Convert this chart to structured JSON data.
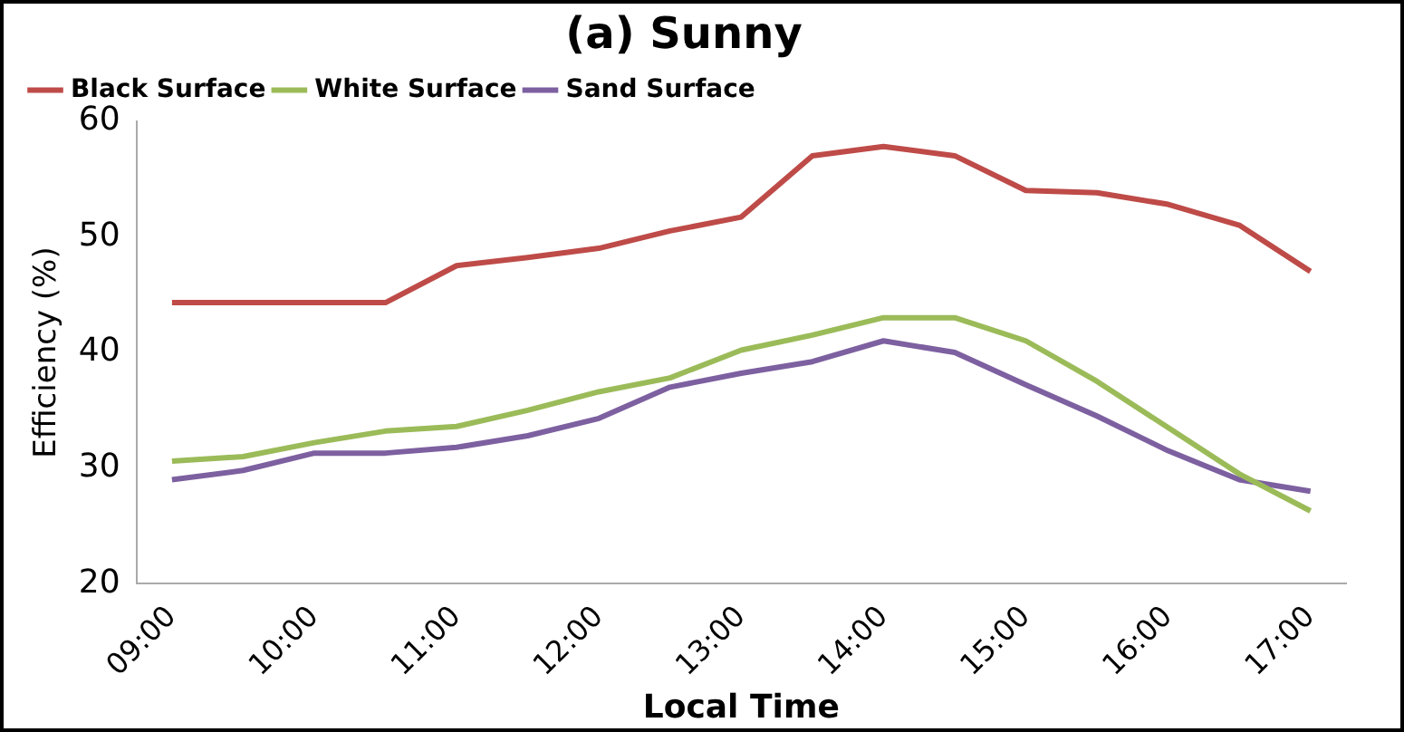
{
  "chart_data": {
    "type": "line",
    "title": "(a) Sunny",
    "xlabel": "Local Time",
    "ylabel": "Efficiency (%)",
    "categories": [
      "09:00",
      null,
      "10:00",
      null,
      "11:00",
      null,
      "12:00",
      null,
      "13:00",
      null,
      "14:00",
      null,
      "15:00",
      null,
      "16:00",
      null,
      "17:00"
    ],
    "series": [
      {
        "name": "Black Surface",
        "color": "#be4b48",
        "values": [
          44.3,
          44.3,
          44.3,
          44.3,
          47.5,
          48.2,
          49,
          50.5,
          51.7,
          57,
          57.8,
          57,
          54,
          53.8,
          52.8,
          51,
          47
        ]
      },
      {
        "name": "White Surface",
        "color": "#9bbb59",
        "values": [
          30.6,
          31,
          32.2,
          33.2,
          33.6,
          35,
          36.6,
          37.8,
          40.2,
          41.5,
          43,
          43,
          41,
          37.5,
          33.5,
          29.5,
          26.3
        ]
      },
      {
        "name": "Sand Surface",
        "color": "#7d60a0",
        "values": [
          29,
          29.8,
          31.3,
          31.3,
          31.8,
          32.8,
          34.3,
          37,
          38.2,
          39.2,
          41,
          40,
          37.2,
          34.5,
          31.5,
          29,
          28
        ]
      }
    ],
    "ylim": [
      20,
      60
    ],
    "yticks": [
      20,
      30,
      40,
      50,
      60
    ],
    "grid": false,
    "legend": "top",
    "marker": "none",
    "line_style": "solid"
  }
}
